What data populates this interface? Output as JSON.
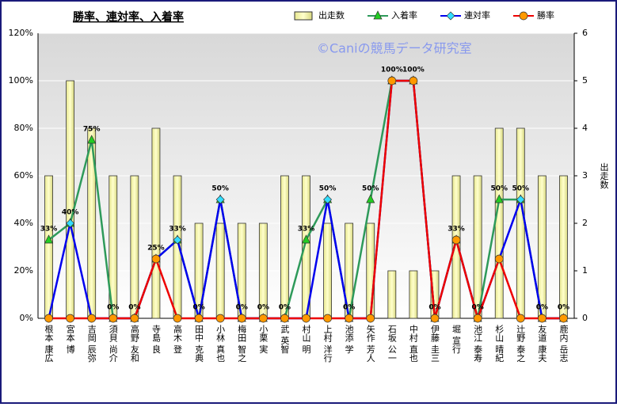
{
  "chart_data": {
    "type": "bar-line",
    "title": "勝率、連対率、入着率",
    "watermark": "©Caniの競馬データ研究室",
    "y2label": "出走数",
    "categories": [
      "根本 康広",
      "宮本 博",
      "吉岡 辰弥",
      "須貝 尚介",
      "高野 友和",
      "寺島 良",
      "高木 登",
      "田中 克典",
      "小林 真也",
      "梅田 智之",
      "小栗 実",
      "武 英智",
      "村山 明",
      "上村 洋行",
      "池添 学",
      "矢作 芳人",
      "石坂 公一",
      "中村 直也",
      "伊藤 圭三",
      "堀 宣行",
      "池江 泰寿",
      "杉山 晴紀",
      "辻野 泰之",
      "友道 康夫",
      "鹿内 岳志"
    ],
    "series": [
      {
        "name": "出走数",
        "kind": "bar",
        "axis": "y2",
        "color": "#ffffaa",
        "values": [
          3,
          5,
          4,
          3,
          3,
          4,
          3,
          2,
          2,
          2,
          2,
          3,
          3,
          2,
          2,
          2,
          1,
          1,
          1,
          3,
          3,
          4,
          4,
          3,
          3
        ]
      },
      {
        "name": "入着率",
        "kind": "line",
        "marker": "triangle",
        "color": "#2e9a5a",
        "marker_color": "#22cc22",
        "values": [
          33,
          40,
          75,
          0,
          0,
          25,
          33,
          0,
          50,
          0,
          0,
          0,
          33,
          50,
          0,
          50,
          100,
          100,
          0,
          33,
          0,
          50,
          50,
          0,
          0
        ],
        "value_labels": [
          "33%",
          "40%",
          "75%",
          "0%",
          "0%",
          "25%",
          "33%",
          "0%",
          "50%",
          "0%",
          "0%",
          "0%",
          "33%",
          "50%",
          "0%",
          "50%",
          "100%",
          "100%",
          "0%",
          "33%",
          "0%",
          "50%",
          "50%",
          "0%",
          "0%"
        ]
      },
      {
        "name": "連対率",
        "kind": "line",
        "marker": "diamond",
        "color": "#0000ee",
        "marker_color": "#33ddff",
        "values": [
          0,
          40,
          0,
          0,
          0,
          25,
          33,
          0,
          50,
          0,
          0,
          0,
          0,
          50,
          0,
          0,
          100,
          100,
          0,
          33,
          0,
          25,
          50,
          0,
          0
        ]
      },
      {
        "name": "勝率",
        "kind": "line",
        "marker": "circle",
        "color": "#ee0000",
        "marker_color": "#ff9900",
        "values": [
          0,
          0,
          0,
          0,
          0,
          25,
          0,
          0,
          0,
          0,
          0,
          0,
          0,
          0,
          0,
          0,
          100,
          100,
          0,
          33,
          0,
          25,
          0,
          0,
          0
        ]
      }
    ],
    "ylim": [
      0,
      120
    ],
    "yticks": [
      {
        "value": 0,
        "label": "0%"
      },
      {
        "value": 20,
        "label": "20%"
      },
      {
        "value": 40,
        "label": "40%"
      },
      {
        "value": 60,
        "label": "60%"
      },
      {
        "value": 80,
        "label": "80%"
      },
      {
        "value": 100,
        "label": "100%"
      },
      {
        "value": 120,
        "label": "120%"
      }
    ],
    "y2lim": [
      0,
      6
    ],
    "y2ticks": [
      0,
      1,
      2,
      3,
      4,
      5,
      6
    ],
    "grid": true
  }
}
